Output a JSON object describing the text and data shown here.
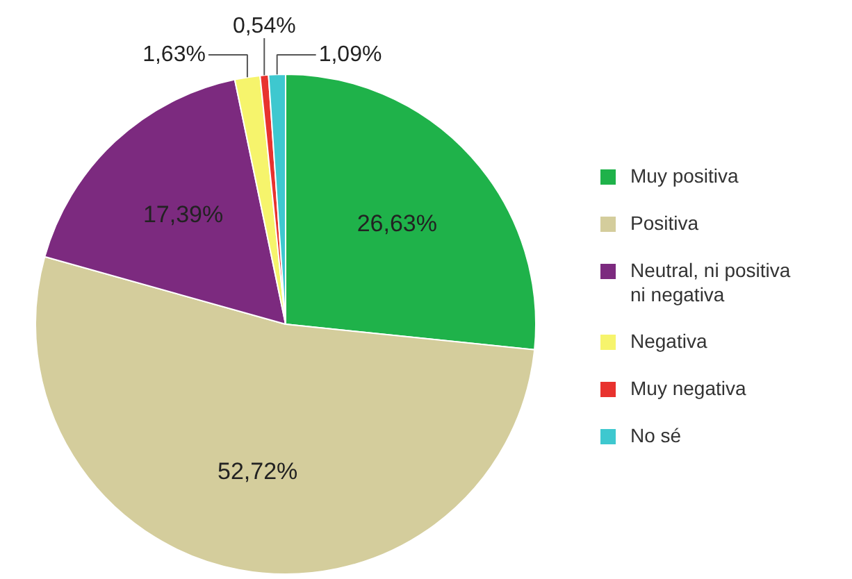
{
  "chart_data": {
    "type": "pie",
    "categories": [
      "Muy positiva",
      "Positiva",
      "Neutral, ni positiva ni negativa",
      "Negativa",
      "Muy negativa",
      "No sé"
    ],
    "values": [
      26.63,
      52.72,
      17.39,
      1.63,
      0.54,
      1.09
    ],
    "colors": [
      "#1fb24a",
      "#d4cd9c",
      "#7c2a7f",
      "#f6f46c",
      "#e8322e",
      "#3ec8cf"
    ],
    "value_labels": [
      "26,63%",
      "52,72%",
      "17,39%",
      "1,63%",
      "0,54%",
      "1,09%"
    ],
    "legend": "right"
  }
}
